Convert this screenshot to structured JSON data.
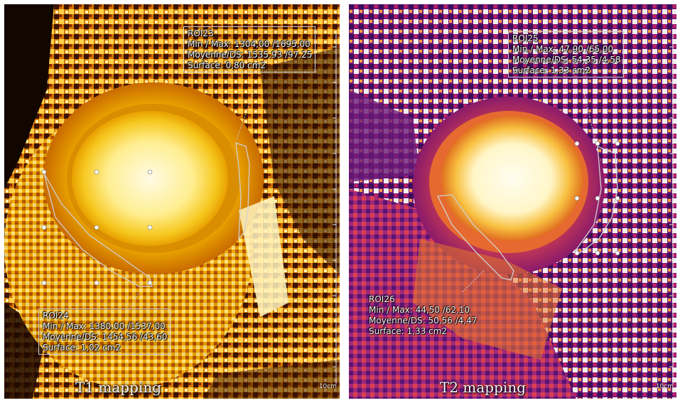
{
  "panels": [
    {
      "caption": "T1 mapping",
      "scale_label": "10cm",
      "rois": [
        {
          "line1": "ROI23",
          "line2": "Min / Max: 1304,00 /1695,00",
          "line3": "Moyenne/DS: 1535,93 /97,25",
          "line4": "Surface: 0,80 cm2"
        },
        {
          "line1": "ROI24",
          "line2": "Min / Max: 1380,00 /1537,00",
          "line3": "Moyenne/DS: 1454,56 /43,60",
          "line4": "Surface: 1,02 cm2"
        }
      ]
    },
    {
      "caption": "T2 mapping",
      "scale_label": "10cm",
      "rois": [
        {
          "line1": "ROI25",
          "line2": "Min / Max: 47,90 /65,00",
          "line3": "Moyenne/DS: 54,35 /4,58",
          "line4": "Surface: 1,33 cm2"
        },
        {
          "line1": "ROI26",
          "line2": "Min / Max: 44,50 /62,10",
          "line3": "Moyenne/DS: 50,56 /4,47",
          "line4": "Surface: 1,33 cm2"
        }
      ]
    }
  ],
  "colors": {
    "t1_dark": "#1a0a00",
    "t1_mid": "#e08a00",
    "t1_bright": "#fff6c8",
    "t2_dark": "#3a1060",
    "t2_mid": "#c0286e",
    "t2_bright": "#fffbe0"
  }
}
